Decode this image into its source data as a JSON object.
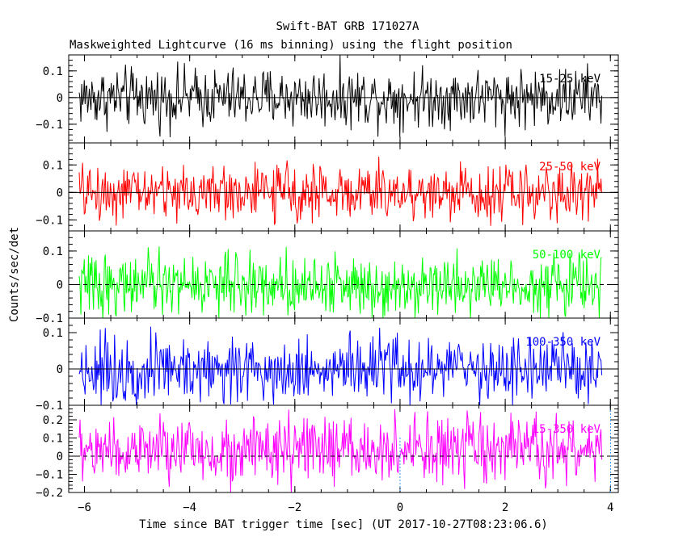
{
  "title": "Swift-BAT GRB 171027A",
  "subtitle": "Maskweighted Lightcurve (16 ms binning) using the flight position",
  "xlabel": "Time since BAT trigger time [sec] (UT 2017-10-27T08:23:06.6)",
  "ylabel": "Counts/sec/det",
  "chart_data": {
    "type": "line",
    "title": "Swift-BAT GRB 171027A",
    "subtitle": "Maskweighted Lightcurve (16 ms binning) using the flight position",
    "xlabel": "Time since BAT trigger time [sec] (UT 2017-10-27T08:23:06.6)",
    "ylabel": "Counts/sec/det",
    "xlim": [
      -6.3,
      4.15
    ],
    "x_ticks": [
      -6,
      -4,
      -2,
      0,
      2,
      4
    ],
    "x_tick_labels": [
      "−6",
      "−4",
      "−2",
      "0",
      "2",
      "4"
    ],
    "x_range_data": [
      -6.1,
      3.85
    ],
    "bin_size_sec": 0.016,
    "trigger_marker_x": 0,
    "grid": false,
    "panels": [
      {
        "name": "15-25 keV",
        "color": "#000000",
        "ylim": [
          -0.17,
          0.16
        ],
        "yticks": [
          -0.1,
          0,
          0.1
        ],
        "ytick_labels": [
          "−0.1",
          "0",
          "0.1"
        ],
        "mean": 0.0,
        "amplitude": 0.055,
        "dashed_zero": false
      },
      {
        "name": "25-50 keV",
        "color": "#ff0000",
        "ylim": [
          -0.14,
          0.18
        ],
        "yticks": [
          -0.1,
          0,
          0.1
        ],
        "ytick_labels": [
          "−0.1",
          "0",
          "0.1"
        ],
        "mean": 0.0,
        "amplitude": 0.05,
        "dashed_zero": false
      },
      {
        "name": "50-100 keV",
        "color": "#00ff00",
        "ylim": [
          -0.1,
          0.16
        ],
        "yticks": [
          -0.1,
          0,
          0.1
        ],
        "ytick_labels": [
          "−0.1",
          "0",
          "0.1"
        ],
        "mean": 0.0,
        "amplitude": 0.045,
        "dashed_zero": true
      },
      {
        "name": "100-350 keV",
        "color": "#0000ff",
        "ylim": [
          -0.1,
          0.14
        ],
        "yticks": [
          -0.1,
          0,
          0.1
        ],
        "ytick_labels": [
          "−0.1",
          "0",
          "0.1"
        ],
        "mean": 0.0,
        "amplitude": 0.045,
        "dashed_zero": false
      },
      {
        "name": "15-350 keV",
        "color": "#ff00ff",
        "ylim": [
          -0.2,
          0.28
        ],
        "yticks": [
          -0.2,
          -0.1,
          0,
          0.1,
          0.2
        ],
        "ytick_labels": [
          "−0.2",
          "−0.1",
          "0",
          "0.1",
          "0.2"
        ],
        "mean": 0.03,
        "amplitude": 0.09,
        "dashed_zero": true
      }
    ]
  }
}
